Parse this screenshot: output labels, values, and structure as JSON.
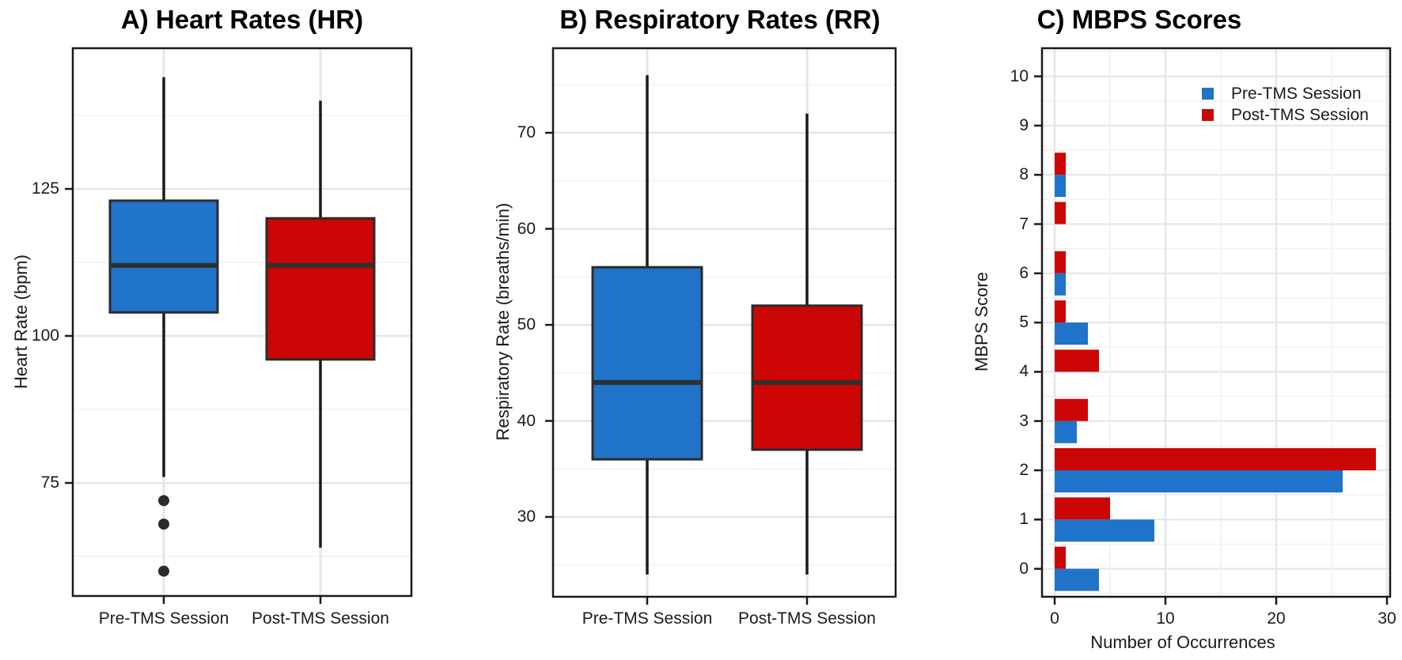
{
  "figure_title_labels": {
    "panel_a": "A) Heart Rates (HR)",
    "panel_b": "B) Respiratory Rates (RR)",
    "panel_c": "C) MBPS Scores"
  },
  "colors": {
    "pre_tms_blue": "#1f73c8",
    "post_tms_red": "#cc0505",
    "box_stroke": "#2b2b2b",
    "median_line": "#2f2f2f",
    "whisker": "#1a1a1a",
    "outlier_dot": "#2b2b2b",
    "plot_border": "#1a1a1a",
    "grid_major": "#e6e6e6",
    "grid_minor": "#f1f1f1"
  },
  "chart_data": [
    {
      "type": "boxplot",
      "title": "A) Heart Rates (HR)",
      "ylabel": "Heart Rate (bpm)",
      "categories": [
        "Pre-TMS Session",
        "Post-TMS Session"
      ],
      "y_ticks": [
        75,
        100,
        125
      ],
      "y_minor_gridlines": [
        62.5,
        87.5,
        112.5,
        137.5
      ],
      "ylim": [
        56,
        149
      ],
      "grid": true,
      "series": [
        {
          "name": "Pre-TMS Session",
          "color": "#1f73c8",
          "whisker_low": 76,
          "q1": 104,
          "median": 112,
          "q3": 123,
          "whisker_high": 144,
          "outliers": [
            72,
            68,
            60
          ]
        },
        {
          "name": "Post-TMS Session",
          "color": "#cc0505",
          "whisker_low": 64,
          "q1": 96,
          "median": 112,
          "q3": 120,
          "whisker_high": 140,
          "outliers": []
        }
      ]
    },
    {
      "type": "boxplot",
      "title": "B) Respiratory Rates (RR)",
      "ylabel": "Respiratory Rate (breaths/min)",
      "categories": [
        "Pre-TMS Session",
        "Post-TMS Session"
      ],
      "y_ticks": [
        30,
        40,
        50,
        60,
        70
      ],
      "y_minor_gridlines": [
        25,
        35,
        45,
        55,
        65,
        75
      ],
      "ylim": [
        22,
        79
      ],
      "grid": true,
      "series": [
        {
          "name": "Pre-TMS Session",
          "color": "#1f73c8",
          "whisker_low": 24,
          "q1": 36,
          "median": 44,
          "q3": 56,
          "whisker_high": 76,
          "outliers": []
        },
        {
          "name": "Post-TMS Session",
          "color": "#cc0505",
          "whisker_low": 24,
          "q1": 37,
          "median": 44,
          "q3": 52,
          "whisker_high": 72,
          "outliers": []
        }
      ]
    },
    {
      "type": "bar",
      "orientation": "horizontal",
      "title": "C) MBPS Scores",
      "ylabel": "MBPS Score",
      "xlabel": "Number of Occurrences",
      "categories": [
        0,
        1,
        2,
        3,
        4,
        5,
        6,
        7,
        8,
        9,
        10
      ],
      "x_ticks": [
        0,
        10,
        20,
        30
      ],
      "x_minor_gridlines": [
        5,
        15,
        25
      ],
      "xlim": [
        0,
        30.3
      ],
      "grid": true,
      "legend_position": "top-right-inside",
      "series": [
        {
          "name": "Pre-TMS Session",
          "color": "#1f73c8",
          "values": [
            4,
            9,
            26,
            2,
            0,
            3,
            1,
            0,
            1,
            0,
            0
          ]
        },
        {
          "name": "Post-TMS Session",
          "color": "#cc0505",
          "values": [
            1,
            5,
            29,
            3,
            4,
            1,
            1,
            1,
            1,
            0,
            0
          ]
        }
      ]
    }
  ]
}
